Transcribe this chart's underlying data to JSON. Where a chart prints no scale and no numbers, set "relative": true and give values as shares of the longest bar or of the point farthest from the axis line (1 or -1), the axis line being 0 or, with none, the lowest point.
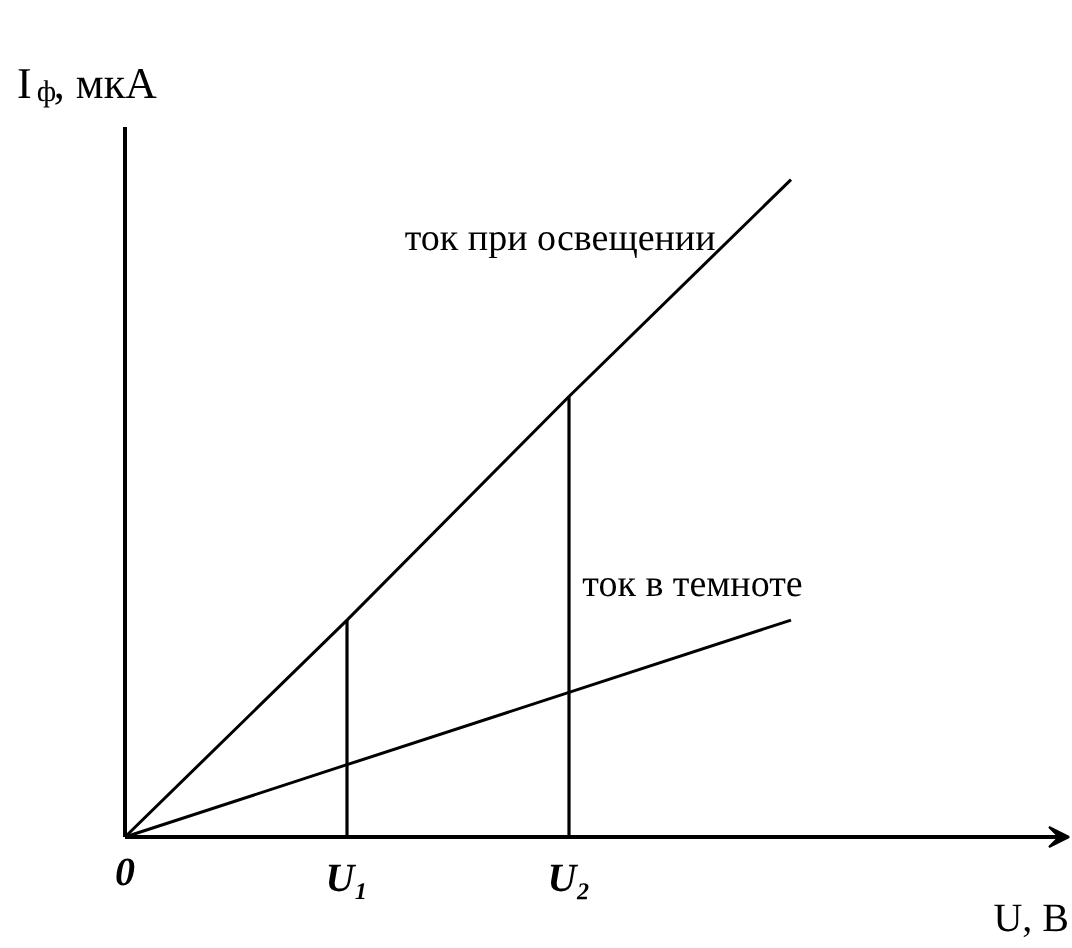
{
  "chart_data": {
    "type": "line",
    "relative": true,
    "ylabel": "I$_{ф}$, мкА",
    "xlabel": "U, В",
    "categories": [
      "0",
      "U₁",
      "U₂",
      null
    ],
    "grid": false,
    "marker": "none",
    "line_style": "solid",
    "series": [
      {
        "name": "ток при освещении",
        "color": "#000000",
        "values": [
          0,
          0.33,
          0.67,
          1
        ]
      },
      {
        "name": "ток в темноте",
        "color": "#000000",
        "values": [
          0,
          0.11,
          0.22,
          0.33
        ]
      },
      {
        "type": "bar",
        "color": "#000000",
        "values": [
          null,
          0.33,
          0.67,
          null
        ]
      }
    ]
  }
}
